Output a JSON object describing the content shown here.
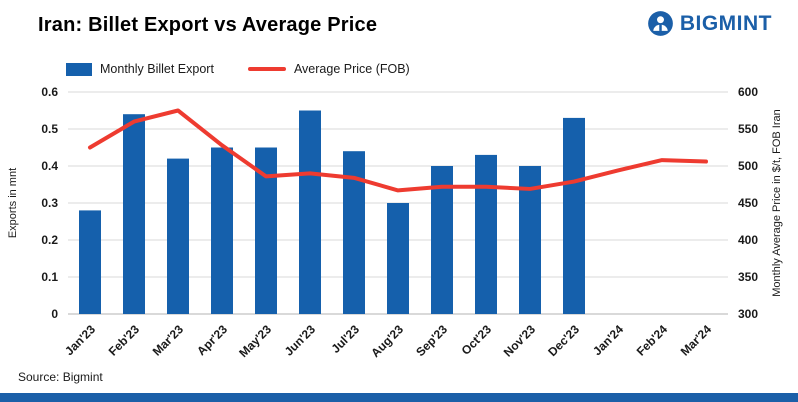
{
  "header": {
    "title": "Iran: Billet Export vs Average Price",
    "brand": "BIGMINT"
  },
  "colors": {
    "bar": "#1560ac",
    "line": "#ee3b30",
    "brand": "#1b5fa8",
    "grid": "#d9d9d9",
    "axis_text": "#1a1a1a"
  },
  "legend": [
    {
      "label": "Monthly Billet Export",
      "type": "bar"
    },
    {
      "label": "Average Price (FOB)",
      "type": "line"
    }
  ],
  "chart_data": {
    "type": "bar+line",
    "categories": [
      "Jan'23",
      "Feb'23",
      "Mar'23",
      "Apr'23",
      "May'23",
      "Jun'23",
      "Jul'23",
      "Aug'23",
      "Sep'23",
      "Oct'23",
      "Nov'23",
      "Dec'23",
      "Jan'24",
      "Feb'24",
      "Mar'24"
    ],
    "series": [
      {
        "name": "Monthly Billet Export",
        "type": "bar",
        "axis": "left",
        "values": [
          0.28,
          0.54,
          0.42,
          0.45,
          0.45,
          0.55,
          0.44,
          0.3,
          0.4,
          0.43,
          0.4,
          0.53,
          null,
          null,
          null
        ]
      },
      {
        "name": "Average Price (FOB)",
        "type": "line",
        "axis": "right",
        "values": [
          525,
          560,
          575,
          528,
          486,
          490,
          484,
          467,
          472,
          472,
          469,
          479,
          494,
          508,
          506
        ]
      }
    ],
    "left_axis": {
      "label": "Exports in mnt",
      "min": 0,
      "max": 0.6,
      "ticks": [
        0,
        0.1,
        0.2,
        0.3,
        0.4,
        0.5,
        0.6
      ],
      "tick_labels": [
        "0",
        "0.1",
        "0.2",
        "0.3",
        "0.4",
        "0.5",
        "0.6"
      ]
    },
    "right_axis": {
      "label": "Monthly Average Price in $/t, FOB Iran",
      "min": 300,
      "max": 600,
      "ticks": [
        300,
        350,
        400,
        450,
        500,
        550,
        600
      ],
      "tick_labels": [
        "300",
        "350",
        "400",
        "450",
        "500",
        "550",
        "600"
      ]
    },
    "grid": "horizontal",
    "legend_position": "top-left"
  },
  "footer": {
    "source": "Source: Bigmint"
  }
}
